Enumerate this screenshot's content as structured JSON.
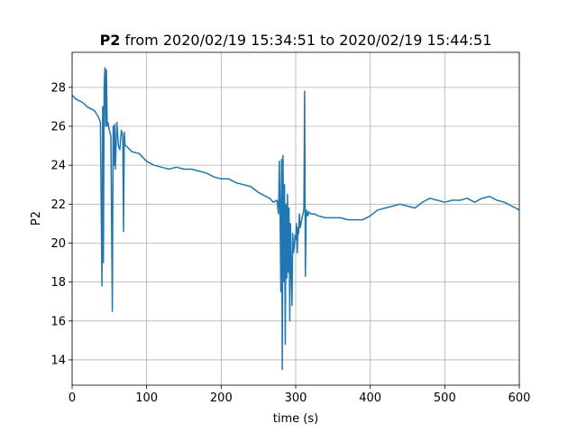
{
  "chart_data": {
    "type": "line",
    "title": {
      "bold": "P2",
      "rest": " from 2020/02/19 15:34:51 to 2020/02/19 15:44:51"
    },
    "xlabel": "time (s)",
    "ylabel": "P2",
    "xlim": [
      0,
      600
    ],
    "ylim": [
      12.7,
      29.8
    ],
    "xticks": [
      0,
      100,
      200,
      300,
      400,
      500,
      600
    ],
    "yticks": [
      14,
      16,
      18,
      20,
      22,
      24,
      26,
      28
    ],
    "grid": true,
    "series": [
      {
        "color": "#1f77b4",
        "x": [
          0,
          5,
          10,
          15,
          20,
          25,
          30,
          35,
          38,
          40,
          41,
          42,
          43,
          44,
          45,
          46,
          47,
          48,
          50,
          52,
          54,
          55,
          56,
          57,
          58,
          60,
          62,
          64,
          66,
          68,
          69,
          70,
          71,
          72,
          75,
          80,
          90,
          100,
          110,
          120,
          130,
          140,
          150,
          160,
          170,
          180,
          190,
          200,
          210,
          220,
          230,
          240,
          250,
          260,
          265,
          270,
          275,
          276,
          277,
          278,
          279,
          280,
          281,
          282,
          283,
          284,
          285,
          286,
          287,
          288,
          289,
          290,
          291,
          292,
          293,
          294,
          295,
          296,
          297,
          298,
          299,
          300,
          301,
          302,
          303,
          304,
          305,
          306,
          307,
          308,
          309,
          310,
          311,
          312,
          313,
          314,
          315,
          316,
          318,
          320,
          325,
          330,
          340,
          350,
          360,
          370,
          380,
          390,
          400,
          410,
          420,
          430,
          440,
          450,
          460,
          470,
          480,
          490,
          500,
          510,
          520,
          530,
          540,
          550,
          560,
          570,
          580,
          590,
          595,
          600
        ],
        "y": [
          27.6,
          27.4,
          27.3,
          27.2,
          27.0,
          26.9,
          26.8,
          26.5,
          26.2,
          17.8,
          27.0,
          19.0,
          28.0,
          29.0,
          26.0,
          28.9,
          26.0,
          26.2,
          25.8,
          25.5,
          16.5,
          26.0,
          24.0,
          26.1,
          23.8,
          26.2,
          25.0,
          24.8,
          25.8,
          25.5,
          20.6,
          25.7,
          25.0,
          25.0,
          24.9,
          24.7,
          24.6,
          24.2,
          24.0,
          23.9,
          23.8,
          23.9,
          23.8,
          23.8,
          23.7,
          23.6,
          23.4,
          23.3,
          23.3,
          23.1,
          23.0,
          22.9,
          22.6,
          22.4,
          22.3,
          22.1,
          22.2,
          21.8,
          21.5,
          24.2,
          22.0,
          17.5,
          24.3,
          13.5,
          24.5,
          18.0,
          23.0,
          14.8,
          22.0,
          18.2,
          22.5,
          18.5,
          21.8,
          16.0,
          21.0,
          18.8,
          16.8,
          20.5,
          19.5,
          19.8,
          20.4,
          20.2,
          21.0,
          19.5,
          20.8,
          20.5,
          21.5,
          20.8,
          21.0,
          21.2,
          21.4,
          21.5,
          21.8,
          27.8,
          18.3,
          21.5,
          21.7,
          21.4,
          21.6,
          21.5,
          21.5,
          21.4,
          21.3,
          21.3,
          21.3,
          21.2,
          21.2,
          21.2,
          21.4,
          21.7,
          21.8,
          21.9,
          22.0,
          21.9,
          21.8,
          22.1,
          22.3,
          22.2,
          22.1,
          22.2,
          22.2,
          22.3,
          22.1,
          22.3,
          22.4,
          22.2,
          22.1,
          21.9,
          21.8,
          21.7
        ]
      }
    ]
  }
}
